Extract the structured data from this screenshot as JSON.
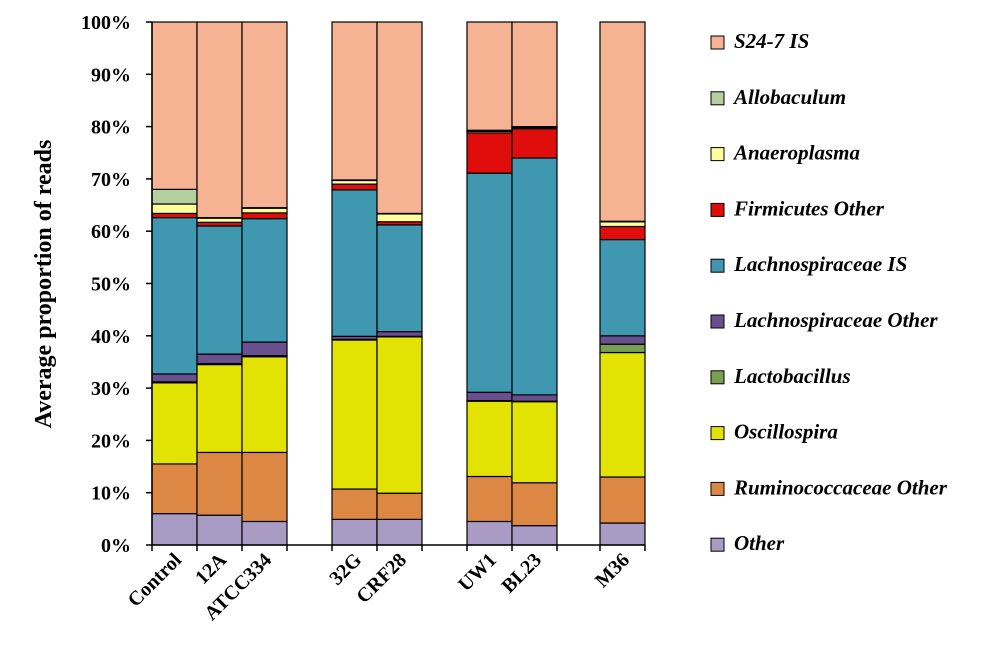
{
  "chart_data": {
    "type": "bar",
    "stacked": true,
    "title": "",
    "xlabel": "",
    "ylabel": "Average proportion of reads",
    "ylim": [
      0,
      100
    ],
    "yticks": [
      "0%",
      "10%",
      "20%",
      "30%",
      "40%",
      "50%",
      "60%",
      "70%",
      "80%",
      "90%",
      "100%"
    ],
    "categories": [
      "Control",
      "12A",
      "ATCC334",
      "32G",
      "CRF28",
      "UW1",
      "BL23",
      "M36"
    ],
    "category_groups": [
      [
        0,
        1,
        2
      ],
      [
        3,
        4
      ],
      [
        5,
        6
      ],
      [
        7
      ]
    ],
    "legend_position": "right",
    "series": [
      {
        "name": "Other",
        "color": "#a99cc4",
        "values": [
          6.0,
          5.7,
          4.5,
          4.9,
          4.9,
          4.5,
          3.7,
          4.2
        ]
      },
      {
        "name": "Ruminococcaceae Other",
        "color": "#dc8744",
        "values": [
          9.5,
          12.0,
          13.2,
          5.8,
          5.0,
          8.6,
          8.2,
          8.8
        ]
      },
      {
        "name": "Oscillospira",
        "color": "#e3e303",
        "values": [
          15.5,
          16.8,
          18.3,
          28.5,
          29.9,
          14.4,
          15.5,
          23.8
        ]
      },
      {
        "name": "Lactobacillus",
        "color": "#78a050",
        "values": [
          0.2,
          0.2,
          0.2,
          0.1,
          0.1,
          0.1,
          0.1,
          1.6
        ]
      },
      {
        "name": "Lachnospiraceae Other",
        "color": "#6a4f8f",
        "values": [
          1.5,
          1.8,
          2.6,
          0.6,
          0.9,
          1.6,
          1.2,
          1.6
        ]
      },
      {
        "name": "Lachnospiraceae IS",
        "color": "#4098b0",
        "values": [
          29.9,
          24.5,
          23.6,
          28.0,
          20.4,
          41.9,
          45.3,
          18.4
        ]
      },
      {
        "name": "Firmicutes Other",
        "color": "#e00d0d",
        "values": [
          0.8,
          0.7,
          1.1,
          1.1,
          0.6,
          7.7,
          5.6,
          2.5
        ]
      },
      {
        "name": "Anaeroplasma",
        "color": "#fefe9a",
        "values": [
          1.8,
          0.8,
          0.9,
          0.7,
          1.5,
          0.3,
          0.2,
          0.9
        ]
      },
      {
        "name": "Allobaculum",
        "color": "#b4cfa0",
        "values": [
          2.8,
          0.1,
          0.1,
          0.1,
          0.1,
          0.2,
          0.2,
          0.1
        ]
      },
      {
        "name": "S24-7 IS",
        "color": "#f6b394",
        "values": [
          32.0,
          37.4,
          35.5,
          30.2,
          36.6,
          20.7,
          20.0,
          38.1
        ]
      }
    ]
  }
}
